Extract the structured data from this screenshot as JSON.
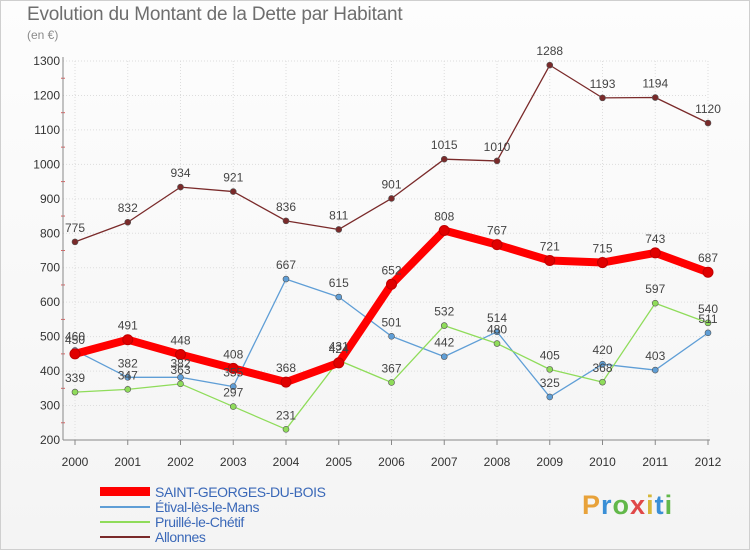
{
  "title": "Evolution du Montant de la Dette par Habitant",
  "unit": "(en €)",
  "brand": {
    "text": "Proxiti",
    "colors": [
      "#e8a23a",
      "#3a8fd6",
      "#62b84a",
      "#e04848",
      "#d6b83a",
      "#3a8fd6",
      "#62b84a"
    ]
  },
  "chart_data": {
    "type": "line",
    "x": [
      "2000",
      "2001",
      "2002",
      "2003",
      "2004",
      "2005",
      "2006",
      "2007",
      "2008",
      "2009",
      "2010",
      "2011",
      "2012"
    ],
    "ylim": [
      200,
      1300
    ],
    "yticks": [
      "200",
      "300",
      "400",
      "500",
      "600",
      "700",
      "800",
      "900",
      "1000",
      "1100",
      "1200",
      "1300"
    ],
    "grid": true,
    "legend_position": "bottom-left",
    "series": [
      {
        "name": "SAINT-GEORGES-DU-BOIS",
        "color": "#ff0000",
        "values": [
          450,
          491,
          448,
          408,
          368,
          424,
          652,
          808,
          767,
          721,
          715,
          743,
          687
        ]
      },
      {
        "name": "Étival-lès-le-Mans",
        "color": "#5f9ed6",
        "values": [
          460,
          382,
          382,
          355,
          667,
          615,
          501,
          442,
          514,
          325,
          420,
          403,
          511
        ]
      },
      {
        "name": "Pruillé-le-Chétif",
        "color": "#8fdc5a",
        "values": [
          339,
          347,
          363,
          297,
          231,
          431,
          367,
          532,
          480,
          405,
          368,
          597,
          540
        ]
      },
      {
        "name": "Allonnes",
        "color": "#7a2a2a",
        "values": [
          775,
          832,
          934,
          921,
          836,
          811,
          901,
          1015,
          1010,
          1288,
          1193,
          1194,
          1120
        ]
      }
    ]
  }
}
